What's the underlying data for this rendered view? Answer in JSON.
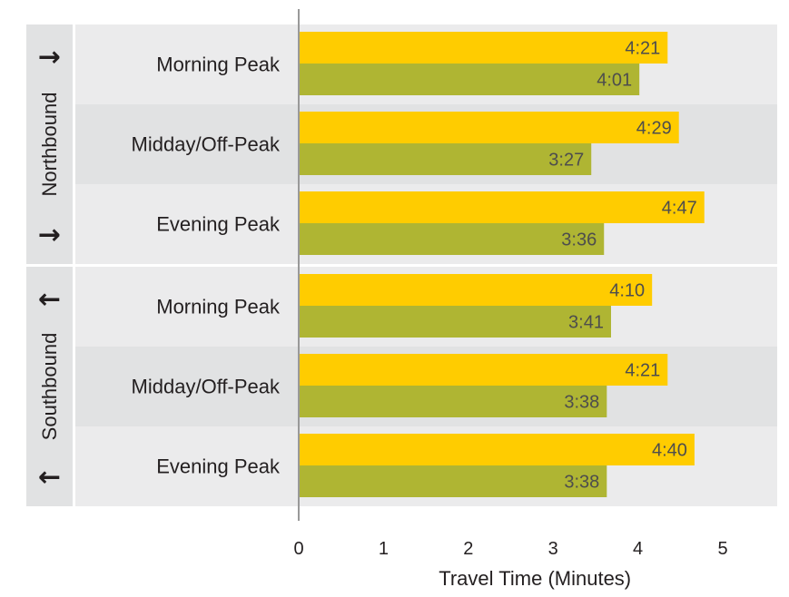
{
  "chart_data": {
    "type": "bar",
    "orientation": "horizontal",
    "xlabel": "Travel Time (Minutes)",
    "xlim": [
      0,
      5.6
    ],
    "xticks": [
      0,
      1,
      2,
      3,
      4,
      5
    ],
    "groups": [
      {
        "name": "Northbound",
        "arrow": "→",
        "categories": [
          {
            "label": "Morning Peak",
            "values": [
              4.35,
              4.017
            ],
            "value_labels": [
              "4:21",
              "4:01"
            ]
          },
          {
            "label": "Midday/Off-Peak",
            "values": [
              4.483,
              3.45
            ],
            "value_labels": [
              "4:29",
              "3:27"
            ]
          },
          {
            "label": "Evening Peak",
            "values": [
              4.783,
              3.6
            ],
            "value_labels": [
              "4:47",
              "3:36"
            ]
          }
        ]
      },
      {
        "name": "Southbound",
        "arrow": "←",
        "categories": [
          {
            "label": "Morning Peak",
            "values": [
              4.167,
              3.683
            ],
            "value_labels": [
              "4:10",
              "3:41"
            ]
          },
          {
            "label": "Midday/Off-Peak",
            "values": [
              4.35,
              3.633
            ],
            "value_labels": [
              "4:21",
              "3:38"
            ]
          },
          {
            "label": "Evening Peak",
            "values": [
              4.667,
              3.633
            ],
            "value_labels": [
              "4:40",
              "3:38"
            ]
          }
        ]
      }
    ],
    "colors": {
      "series_1": "#ffcc00",
      "series_2": "#afb533",
      "band_light": "#ebebec",
      "band_dark": "#e1e2e3",
      "axis": "#999999"
    }
  }
}
